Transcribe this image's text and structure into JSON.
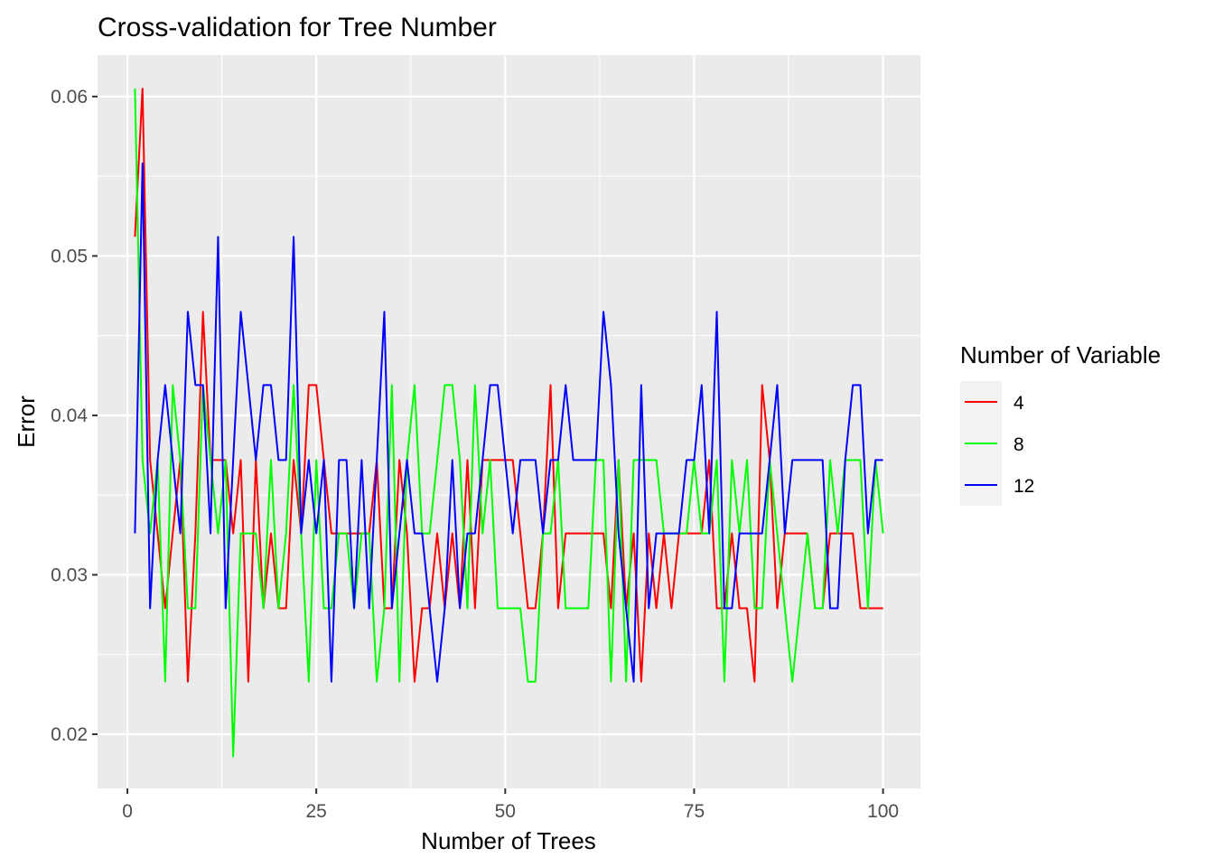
{
  "chart_data": {
    "type": "line",
    "title": "Cross-validation for Tree Number",
    "xlabel": "Number of Trees",
    "ylabel": "Error",
    "xlim": [
      -3.95,
      104.95
    ],
    "ylim": [
      0.0166,
      0.0626
    ],
    "x_ticks": [
      0,
      25,
      50,
      75,
      100
    ],
    "y_ticks": [
      0.02,
      0.03,
      0.04,
      0.05,
      0.06
    ],
    "x_tick_labels": [
      "0",
      "25",
      "50",
      "75",
      "100"
    ],
    "y_tick_labels": [
      "0.02",
      "0.03",
      "0.04",
      "0.05",
      "0.06"
    ],
    "grid": true,
    "legend": {
      "title": "Number of Variable",
      "position": "right",
      "entries": [
        "4",
        "8",
        "12"
      ]
    },
    "colors": [
      "#ff0000",
      "#00ff00",
      "#0000ff"
    ],
    "x": [
      1,
      2,
      3,
      4,
      5,
      6,
      7,
      8,
      9,
      10,
      11,
      12,
      13,
      14,
      15,
      16,
      17,
      18,
      19,
      20,
      21,
      22,
      23,
      24,
      25,
      26,
      27,
      28,
      29,
      30,
      31,
      32,
      33,
      34,
      35,
      36,
      37,
      38,
      39,
      40,
      41,
      42,
      43,
      44,
      45,
      46,
      47,
      48,
      49,
      50,
      51,
      52,
      53,
      54,
      55,
      56,
      57,
      58,
      59,
      60,
      61,
      62,
      63,
      64,
      65,
      66,
      67,
      68,
      69,
      70,
      71,
      72,
      73,
      74,
      75,
      76,
      77,
      78,
      79,
      80,
      81,
      82,
      83,
      84,
      85,
      86,
      87,
      88,
      89,
      90,
      91,
      92,
      93,
      94,
      95,
      96,
      97,
      98,
      99,
      100
    ],
    "series": [
      {
        "name": "4",
        "values": [
          0.0512,
          0.0605,
          0.0372,
          0.0326,
          0.0279,
          0.0326,
          0.0372,
          0.0233,
          0.0326,
          0.0465,
          0.0372,
          0.0372,
          0.0372,
          0.0326,
          0.0372,
          0.0233,
          0.0372,
          0.0279,
          0.0326,
          0.0279,
          0.0279,
          0.0372,
          0.0326,
          0.0419,
          0.0419,
          0.0372,
          0.0326,
          0.0326,
          0.0326,
          0.0326,
          0.0326,
          0.0326,
          0.0372,
          0.0279,
          0.0279,
          0.0372,
          0.0326,
          0.0233,
          0.0279,
          0.0279,
          0.0326,
          0.0279,
          0.0326,
          0.0279,
          0.0372,
          0.0279,
          0.0372,
          0.0372,
          0.0372,
          0.0372,
          0.0372,
          0.0326,
          0.0279,
          0.0279,
          0.0326,
          0.0419,
          0.0279,
          0.0326,
          0.0326,
          0.0326,
          0.0326,
          0.0326,
          0.0326,
          0.0279,
          0.0372,
          0.0279,
          0.0326,
          0.0233,
          0.0326,
          0.0279,
          0.0326,
          0.0279,
          0.0326,
          0.0326,
          0.0326,
          0.0326,
          0.0372,
          0.0279,
          0.0279,
          0.0326,
          0.0279,
          0.0279,
          0.0233,
          0.0419,
          0.0372,
          0.0279,
          0.0326,
          0.0326,
          0.0326,
          0.0326,
          0.0279,
          0.0279,
          0.0326,
          0.0326,
          0.0326,
          0.0326,
          0.0279,
          0.0279,
          0.0279,
          0.0279
        ]
      },
      {
        "name": "8",
        "values": [
          0.0605,
          0.0372,
          0.0326,
          0.0372,
          0.0233,
          0.0419,
          0.0372,
          0.0279,
          0.0279,
          0.0419,
          0.0372,
          0.0326,
          0.0372,
          0.0186,
          0.0326,
          0.0326,
          0.0326,
          0.0279,
          0.0372,
          0.0279,
          0.0326,
          0.0419,
          0.0326,
          0.0233,
          0.0372,
          0.0279,
          0.0279,
          0.0326,
          0.0326,
          0.0279,
          0.0326,
          0.0326,
          0.0233,
          0.0279,
          0.0419,
          0.0233,
          0.0372,
          0.0419,
          0.0326,
          0.0326,
          0.0372,
          0.0419,
          0.0419,
          0.0372,
          0.0279,
          0.0419,
          0.0326,
          0.0372,
          0.0279,
          0.0279,
          0.0279,
          0.0279,
          0.0233,
          0.0233,
          0.0326,
          0.0326,
          0.0372,
          0.0279,
          0.0279,
          0.0279,
          0.0279,
          0.0372,
          0.0372,
          0.0233,
          0.0372,
          0.0233,
          0.0372,
          0.0372,
          0.0372,
          0.0372,
          0.0326,
          0.0326,
          0.0326,
          0.0326,
          0.0372,
          0.0326,
          0.0326,
          0.0372,
          0.0233,
          0.0372,
          0.0326,
          0.0372,
          0.0279,
          0.0279,
          0.0372,
          0.0326,
          0.0279,
          0.0233,
          0.0279,
          0.0326,
          0.0279,
          0.0279,
          0.0372,
          0.0326,
          0.0372,
          0.0372,
          0.0372,
          0.0279,
          0.0372,
          0.0326
        ]
      },
      {
        "name": "12",
        "values": [
          0.0326,
          0.0558,
          0.0279,
          0.0372,
          0.0419,
          0.0372,
          0.0326,
          0.0465,
          0.0419,
          0.0419,
          0.0326,
          0.0512,
          0.0279,
          0.0372,
          0.0465,
          0.0419,
          0.0372,
          0.0419,
          0.0419,
          0.0372,
          0.0372,
          0.0512,
          0.0326,
          0.0372,
          0.0326,
          0.0372,
          0.0233,
          0.0372,
          0.0372,
          0.0279,
          0.0372,
          0.0279,
          0.0372,
          0.0465,
          0.0279,
          0.0326,
          0.0372,
          0.0326,
          0.0326,
          0.0279,
          0.0233,
          0.0279,
          0.0372,
          0.0279,
          0.0326,
          0.0326,
          0.0372,
          0.0419,
          0.0419,
          0.0372,
          0.0326,
          0.0372,
          0.0372,
          0.0372,
          0.0326,
          0.0372,
          0.0372,
          0.0419,
          0.0372,
          0.0372,
          0.0372,
          0.0372,
          0.0465,
          0.0419,
          0.0326,
          0.0279,
          0.0233,
          0.0419,
          0.0279,
          0.0326,
          0.0326,
          0.0326,
          0.0326,
          0.0372,
          0.0372,
          0.0419,
          0.0326,
          0.0465,
          0.0279,
          0.0279,
          0.0326,
          0.0326,
          0.0326,
          0.0326,
          0.0372,
          0.0419,
          0.0326,
          0.0372,
          0.0372,
          0.0372,
          0.0372,
          0.0372,
          0.0279,
          0.0279,
          0.0372,
          0.0419,
          0.0419,
          0.0326,
          0.0372,
          0.0372
        ]
      }
    ]
  }
}
